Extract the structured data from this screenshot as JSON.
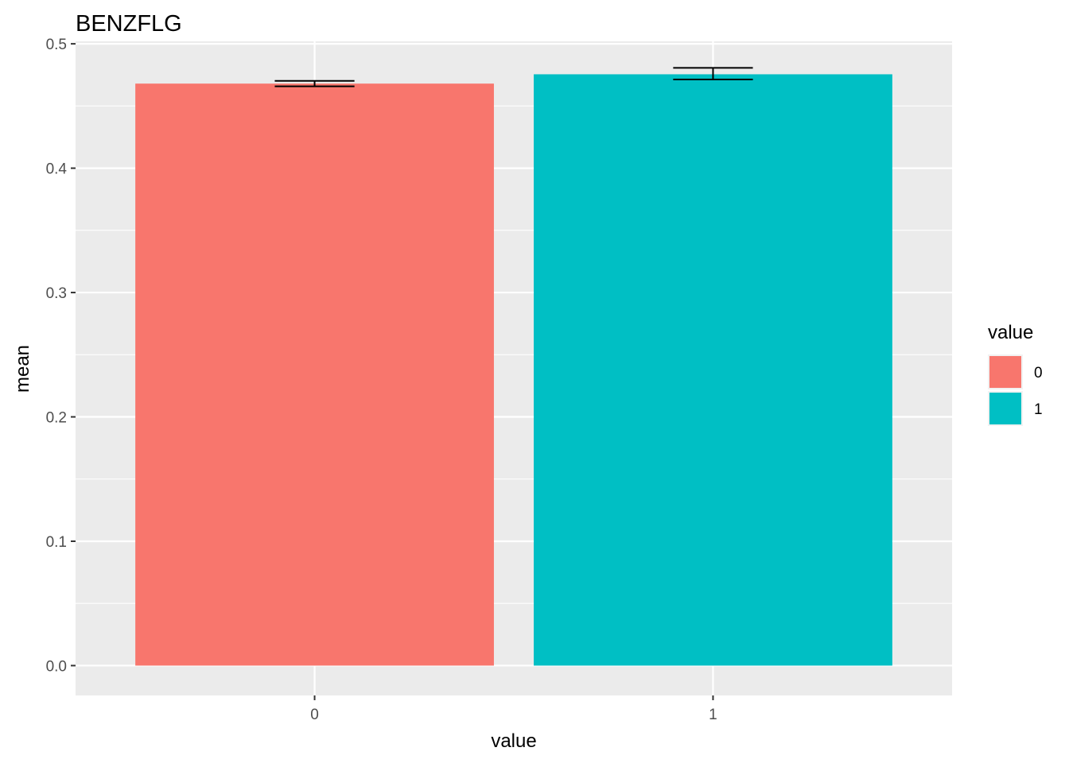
{
  "chart_data": {
    "type": "bar",
    "title": "BENZFLG",
    "xlabel": "value",
    "ylabel": "mean",
    "categories": [
      "0",
      "1"
    ],
    "values": [
      0.468,
      0.4755
    ],
    "error_low": [
      0.4658,
      0.4713
    ],
    "error_high": [
      0.4702,
      0.4807
    ],
    "ylim": [
      -0.024,
      0.502
    ],
    "yticks": [
      0.0,
      0.1,
      0.2,
      0.3,
      0.4,
      0.5
    ],
    "ytick_labels": [
      "0.0",
      "0.1",
      "0.2",
      "0.3",
      "0.4",
      "0.5"
    ],
    "grid": true,
    "legend": {
      "title": "value",
      "placement": "right",
      "entries": [
        "0",
        "1"
      ]
    },
    "colors": [
      "#F8766D",
      "#00BFC4"
    ],
    "panel_background": "#EBEBEB",
    "grid_color": "#FFFFFF"
  }
}
